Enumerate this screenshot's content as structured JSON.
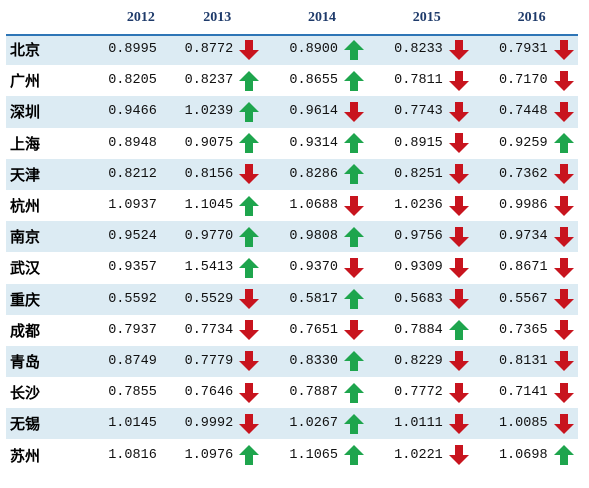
{
  "columns": [
    "2012",
    "2013",
    "2014",
    "2015",
    "2016"
  ],
  "colors": {
    "up": "#1ea54d",
    "down": "#c8141e",
    "row_shade": "#dcebf3",
    "header_text": "#1f3b6b"
  },
  "rows": [
    {
      "city": "北京",
      "values": [
        "0.8995",
        "0.8772",
        "0.8900",
        "0.8233",
        "0.7931"
      ],
      "arrows": [
        "down",
        "up",
        "down",
        "down"
      ]
    },
    {
      "city": "广州",
      "values": [
        "0.8205",
        "0.8237",
        "0.8655",
        "0.7811",
        "0.7170"
      ],
      "arrows": [
        "up",
        "up",
        "down",
        "down"
      ]
    },
    {
      "city": "深圳",
      "values": [
        "0.9466",
        "1.0239",
        "0.9614",
        "0.7743",
        "0.7448"
      ],
      "arrows": [
        "up",
        "down",
        "down",
        "down"
      ]
    },
    {
      "city": "上海",
      "values": [
        "0.8948",
        "0.9075",
        "0.9314",
        "0.8915",
        "0.9259"
      ],
      "arrows": [
        "up",
        "up",
        "down",
        "up"
      ]
    },
    {
      "city": "天津",
      "values": [
        "0.8212",
        "0.8156",
        "0.8286",
        "0.8251",
        "0.7362"
      ],
      "arrows": [
        "down",
        "up",
        "down",
        "down"
      ]
    },
    {
      "city": "杭州",
      "values": [
        "1.0937",
        "1.1045",
        "1.0688",
        "1.0236",
        "0.9986"
      ],
      "arrows": [
        "up",
        "down",
        "down",
        "down"
      ]
    },
    {
      "city": "南京",
      "values": [
        "0.9524",
        "0.9770",
        "0.9808",
        "0.9756",
        "0.9734"
      ],
      "arrows": [
        "up",
        "up",
        "down",
        "down"
      ]
    },
    {
      "city": "武汉",
      "values": [
        "0.9357",
        "1.5413",
        "0.9370",
        "0.9309",
        "0.8671"
      ],
      "arrows": [
        "up",
        "down",
        "down",
        "down"
      ]
    },
    {
      "city": "重庆",
      "values": [
        "0.5592",
        "0.5529",
        "0.5817",
        "0.5683",
        "0.5567"
      ],
      "arrows": [
        "down",
        "up",
        "down",
        "down"
      ]
    },
    {
      "city": "成都",
      "values": [
        "0.7937",
        "0.7734",
        "0.7651",
        "0.7884",
        "0.7365"
      ],
      "arrows": [
        "down",
        "down",
        "up",
        "down"
      ]
    },
    {
      "city": "青岛",
      "values": [
        "0.8749",
        "0.7779",
        "0.8330",
        "0.8229",
        "0.8131"
      ],
      "arrows": [
        "down",
        "up",
        "down",
        "down"
      ]
    },
    {
      "city": "长沙",
      "values": [
        "0.7855",
        "0.7646",
        "0.7887",
        "0.7772",
        "0.7141"
      ],
      "arrows": [
        "down",
        "up",
        "down",
        "down"
      ]
    },
    {
      "city": "无锡",
      "values": [
        "1.0145",
        "0.9992",
        "1.0267",
        "1.0111",
        "1.0085"
      ],
      "arrows": [
        "down",
        "up",
        "down",
        "down"
      ]
    },
    {
      "city": "苏州",
      "values": [
        "1.0816",
        "1.0976",
        "1.1065",
        "1.0221",
        "1.0698"
      ],
      "arrows": [
        "up",
        "up",
        "down",
        "up"
      ]
    }
  ]
}
